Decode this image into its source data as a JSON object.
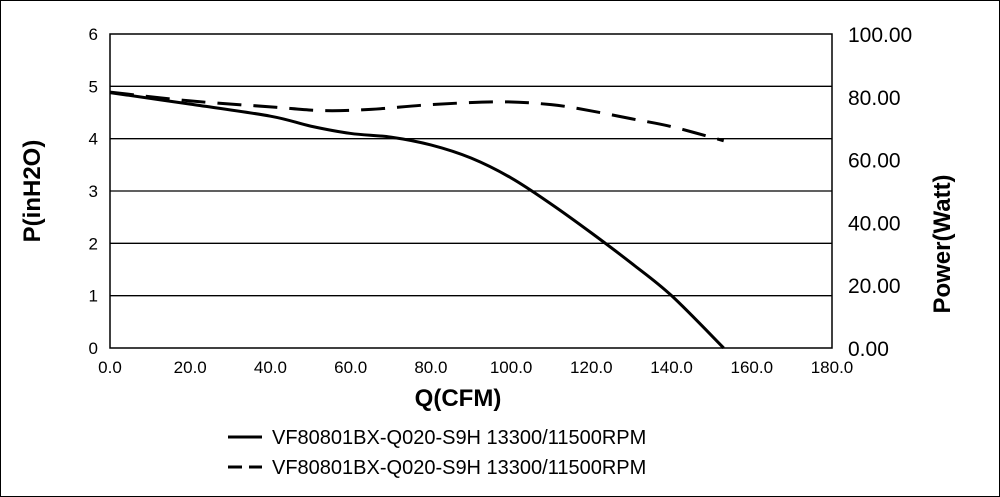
{
  "chart_data": {
    "type": "line",
    "xlabel": "Q(CFM)",
    "ylabel": "P(inH2O)",
    "y2label": "Power(Watt)",
    "xlim": [
      0,
      180
    ],
    "ylim": [
      0,
      6
    ],
    "y2lim": [
      0,
      100
    ],
    "grid": "horizontal",
    "legend_position": "bottom",
    "x_ticks": [
      "0.0",
      "20.0",
      "40.0",
      "60.0",
      "80.0",
      "100.0",
      "120.0",
      "140.0",
      "160.0",
      "180.0"
    ],
    "y_ticks": [
      "0",
      "1",
      "2",
      "3",
      "4",
      "5",
      "6"
    ],
    "y2_ticks": [
      "0.00",
      "20.00",
      "40.00",
      "60.00",
      "80.00",
      "100.00"
    ],
    "series": [
      {
        "name": "VF80801BX-Q020-S9H 13300/11500RPM",
        "axis": "left",
        "style": "solid",
        "x": [
          0,
          20,
          40,
          50,
          60,
          70,
          80,
          90,
          100,
          110,
          120,
          130,
          140,
          153
        ],
        "y": [
          4.88,
          4.66,
          4.43,
          4.24,
          4.1,
          4.03,
          3.88,
          3.63,
          3.25,
          2.75,
          2.2,
          1.62,
          1.0,
          0
        ]
      },
      {
        "name": "VF80801BX-Q020-S9H 13300/11500RPM",
        "axis": "right",
        "style": "dashed",
        "x": [
          0,
          20,
          40,
          53,
          65,
          80,
          97,
          110,
          120,
          130,
          140,
          153
        ],
        "y": [
          81.5,
          78.7,
          76.8,
          75.6,
          76.0,
          77.5,
          78.4,
          77.5,
          75.5,
          73.0,
          70.5,
          66.0
        ]
      }
    ]
  }
}
